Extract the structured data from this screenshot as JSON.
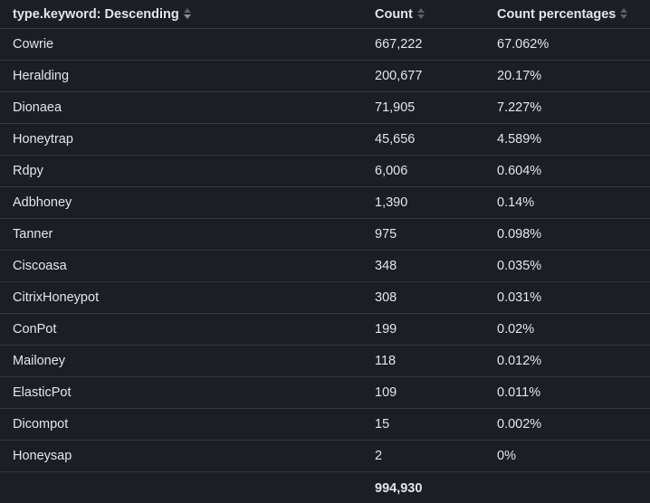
{
  "header": {
    "col1": "type.keyword: Descending",
    "col2": "Count",
    "col3": "Count percentages"
  },
  "rows": [
    {
      "type": "Cowrie",
      "count": "667,222",
      "pct": "67.062%"
    },
    {
      "type": "Heralding",
      "count": "200,677",
      "pct": "20.17%"
    },
    {
      "type": "Dionaea",
      "count": "71,905",
      "pct": "7.227%"
    },
    {
      "type": "Honeytrap",
      "count": "45,656",
      "pct": "4.589%"
    },
    {
      "type": "Rdpy",
      "count": "6,006",
      "pct": "0.604%"
    },
    {
      "type": "Adbhoney",
      "count": "1,390",
      "pct": "0.14%"
    },
    {
      "type": "Tanner",
      "count": "975",
      "pct": "0.098%"
    },
    {
      "type": "Ciscoasa",
      "count": "348",
      "pct": "0.035%"
    },
    {
      "type": "CitrixHoneypot",
      "count": "308",
      "pct": "0.031%"
    },
    {
      "type": "ConPot",
      "count": "199",
      "pct": "0.02%"
    },
    {
      "type": "Mailoney",
      "count": "118",
      "pct": "0.012%"
    },
    {
      "type": "ElasticPot",
      "count": "109",
      "pct": "0.011%"
    },
    {
      "type": "Dicompot",
      "count": "15",
      "pct": "0.002%"
    },
    {
      "type": "Honeysap",
      "count": "2",
      "pct": "0%"
    }
  ],
  "footer": {
    "total": "994,930"
  }
}
